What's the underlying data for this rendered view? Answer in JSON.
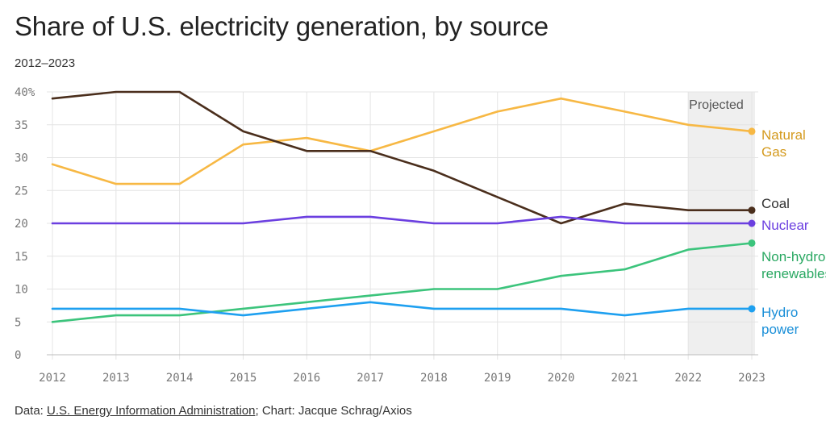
{
  "header": {
    "title": "Share of U.S. electricity generation, by source",
    "subtitle": "2012–2023"
  },
  "footer": {
    "data_prefix": "Data: ",
    "source": "U.S. Energy Information Administration",
    "separator": "; ",
    "credit": "Chart: Jacque Schrag/Axios"
  },
  "chart_data": {
    "type": "line",
    "x": [
      2012,
      2013,
      2014,
      2015,
      2016,
      2017,
      2018,
      2019,
      2020,
      2021,
      2022,
      2023
    ],
    "ylim": [
      0,
      40
    ],
    "yticks": [
      "0",
      "5",
      "10",
      "15",
      "20",
      "25",
      "30",
      "35",
      "40%"
    ],
    "xticks": [
      "2012",
      "2013",
      "2014",
      "2015",
      "2016",
      "2017",
      "2018",
      "2019",
      "2020",
      "2021",
      "2022",
      "2023"
    ],
    "grid": true,
    "projected": {
      "label": "Projected",
      "from": 2022,
      "to": 2023
    },
    "series": [
      {
        "name": "Natural Gas",
        "label_lines": [
          "Natural",
          "Gas"
        ],
        "color": "#f7b844",
        "label_color": "#d49a1e",
        "values": [
          29,
          26,
          26,
          32,
          33,
          31,
          34,
          37,
          39,
          37,
          35,
          34
        ]
      },
      {
        "name": "Coal",
        "label_lines": [
          "Coal"
        ],
        "color": "#4a2e1c",
        "label_color": "#333333",
        "values": [
          39,
          40,
          40,
          34,
          31,
          31,
          28,
          24,
          20,
          23,
          22,
          22
        ]
      },
      {
        "name": "Nuclear",
        "label_lines": [
          "Nuclear"
        ],
        "color": "#6b3fe0",
        "label_color": "#6b3fe0",
        "values": [
          20,
          20,
          20,
          20,
          21,
          21,
          20,
          20,
          21,
          20,
          20,
          20
        ]
      },
      {
        "name": "Non-hydro renewables",
        "label_lines": [
          "Non-hydro",
          "renewables"
        ],
        "color": "#3cc47c",
        "label_color": "#2aa862",
        "values": [
          5,
          6,
          6,
          7,
          8,
          9,
          10,
          10,
          12,
          13,
          16,
          17
        ]
      },
      {
        "name": "Hydro power",
        "label_lines": [
          "Hydro",
          "power"
        ],
        "color": "#1ea0f0",
        "label_color": "#1a8fd8",
        "values": [
          7,
          7,
          7,
          6,
          7,
          8,
          7,
          7,
          7,
          6,
          7,
          7
        ]
      }
    ]
  }
}
